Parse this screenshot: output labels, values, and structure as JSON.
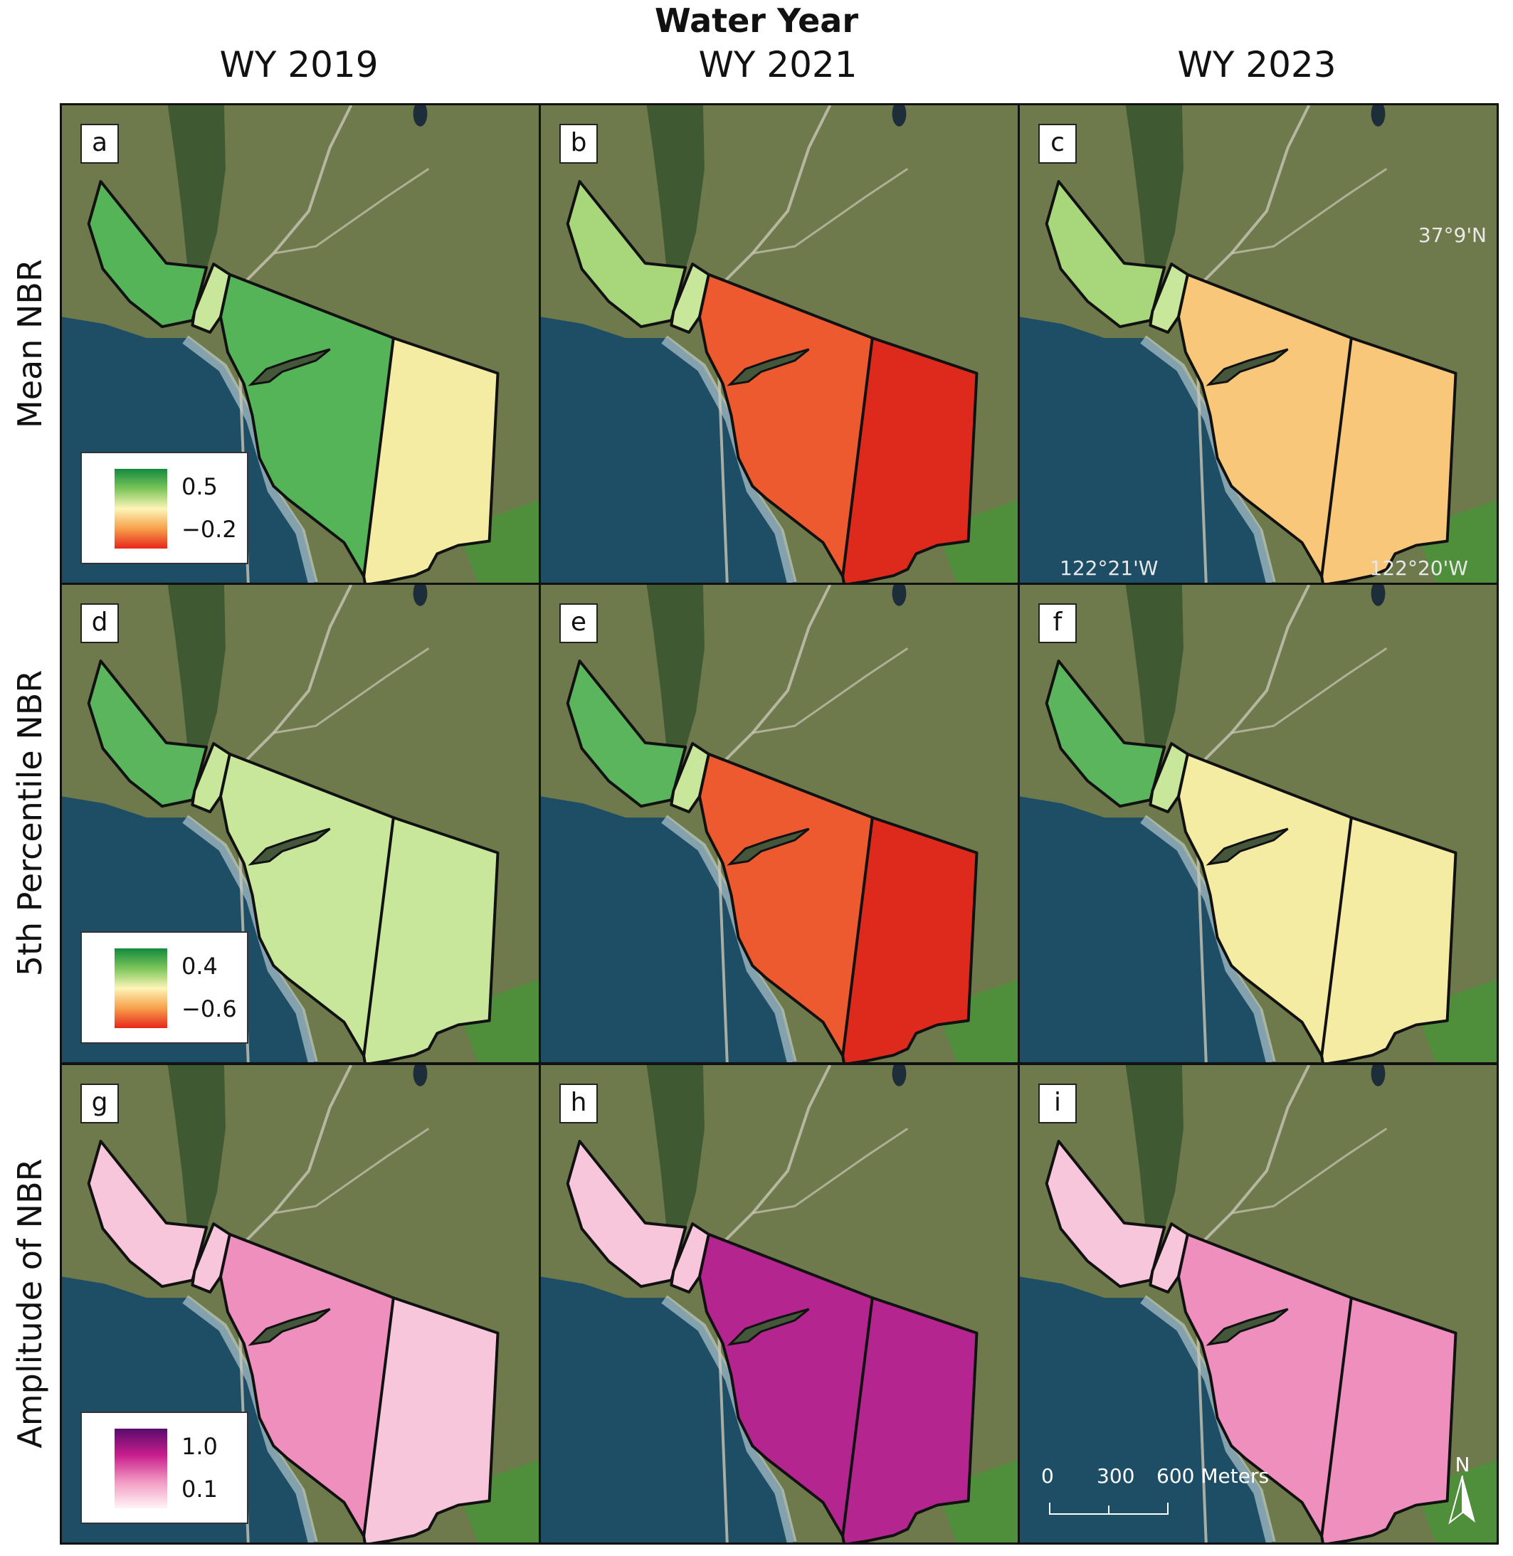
{
  "figure": {
    "title": "Water Year",
    "columns": [
      "WY 2019",
      "WY 2021",
      "WY 2023"
    ],
    "rows": [
      "Mean NBR",
      "5th Percentile NBR",
      "Amplitude of NBR"
    ]
  },
  "panels": [
    {
      "label": "a",
      "row": 0,
      "col": 0,
      "fill": "green-strong",
      "east_fill": "yellow"
    },
    {
      "label": "b",
      "row": 0,
      "col": 1,
      "fill": "red",
      "east_fill": "deep-red"
    },
    {
      "label": "c",
      "row": 0,
      "col": 2,
      "fill": "orange-light",
      "east_fill": "orange-light"
    },
    {
      "label": "d",
      "row": 1,
      "col": 0,
      "fill": "green-light",
      "east_fill": "green-light"
    },
    {
      "label": "e",
      "row": 1,
      "col": 1,
      "fill": "red",
      "east_fill": "deep-red"
    },
    {
      "label": "f",
      "row": 1,
      "col": 2,
      "fill": "yellow",
      "east_fill": "yellow"
    },
    {
      "label": "g",
      "row": 2,
      "col": 0,
      "fill": "pink",
      "east_fill": "pink-light"
    },
    {
      "label": "h",
      "row": 2,
      "col": 1,
      "fill": "purple",
      "east_fill": "purple"
    },
    {
      "label": "i",
      "row": 2,
      "col": 2,
      "fill": "pink",
      "east_fill": "pink"
    }
  ],
  "legends": [
    {
      "row": 0,
      "max": "0.5",
      "min": "−0.2",
      "ramp": [
        "#138a3e",
        "#7cc55a",
        "#fdf5b8",
        "#f7a04a",
        "#e8261c"
      ]
    },
    {
      "row": 1,
      "max": "0.4",
      "min": "−0.6",
      "ramp": [
        "#138a3e",
        "#7cc55a",
        "#fdf5b8",
        "#f7a04a",
        "#e8261c"
      ]
    },
    {
      "row": 2,
      "max": "1.0",
      "min": "0.1",
      "ramp": [
        "#5a0a6e",
        "#c81e8c",
        "#f29ac3",
        "#fff4f6"
      ]
    }
  ],
  "coordinates": {
    "latitude": "37°9'N",
    "longitude_west": "122°21'W",
    "longitude_east": "122°20'W"
  },
  "scale_bar": {
    "ticks": [
      "0",
      "300",
      "600 Meters"
    ]
  },
  "north_arrow": {
    "label": "N",
    "icon": "north-arrow-icon"
  },
  "colors": {
    "ocean": "#1d4e66",
    "land": "#6e7a4c",
    "outline": "#111111",
    "green-strong": "#55b457",
    "green-light": "#c8e79a",
    "yellow": "#f5eca4",
    "orange-light": "#f9c77a",
    "red": "#ee5a2f",
    "deep-red": "#dd2a1c",
    "pink": "#ef8fbe",
    "pink-light": "#f8c6da",
    "purple": "#b4258f"
  }
}
